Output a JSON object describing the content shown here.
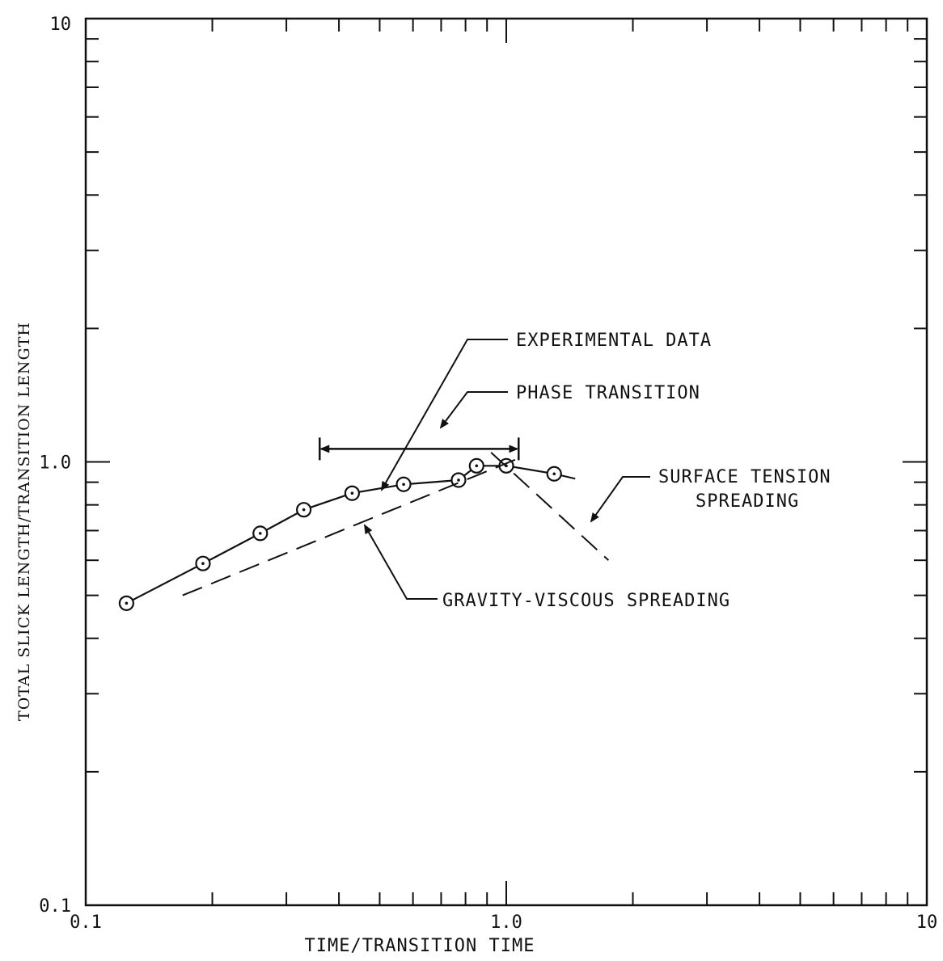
{
  "chart_data": {
    "type": "line",
    "xscale": "log",
    "yscale": "log",
    "xlim": [
      0.1,
      10
    ],
    "ylim": [
      0.1,
      10
    ],
    "xlabel": "TIME/TRANSITION TIME",
    "ylabel": "TOTAL SLICK LENGTH/TRANSITION LENGTH",
    "x_tick_labels": [
      {
        "value": 0.1,
        "label": "0.1"
      },
      {
        "value": 1.0,
        "label": "1.0"
      },
      {
        "value": 10,
        "label": "10"
      }
    ],
    "y_tick_labels": [
      {
        "value": 0.1,
        "label": "0.1"
      },
      {
        "value": 1.0,
        "label": "1.0"
      },
      {
        "value": 10,
        "label": "10"
      }
    ],
    "grid": false,
    "series": [
      {
        "style": "solid-markers",
        "x": [
          0.125,
          0.19,
          0.26,
          0.33,
          0.43,
          0.57,
          0.77,
          0.85,
          1.0,
          1.3
        ],
        "y": [
          0.48,
          0.59,
          0.69,
          0.78,
          0.85,
          0.89,
          0.91,
          0.98,
          0.98,
          0.94
        ]
      },
      {
        "style": "dashed",
        "x": [
          0.17,
          1.1
        ],
        "y": [
          0.5,
          1.03
        ]
      },
      {
        "style": "dashed",
        "x": [
          0.92,
          1.75
        ],
        "y": [
          1.05,
          0.6
        ]
      }
    ],
    "phase_transition_range": [
      0.36,
      1.07
    ],
    "phase_transition_y": 1.07,
    "annotations": {
      "experimental_data": "EXPERIMENTAL DATA",
      "phase_transition": "PHASE TRANSITION",
      "surface_tension_line1": "SURFACE TENSION",
      "surface_tension_line2": "SPREADING",
      "gravity_viscous": "GRAVITY-VISCOUS SPREADING"
    }
  }
}
